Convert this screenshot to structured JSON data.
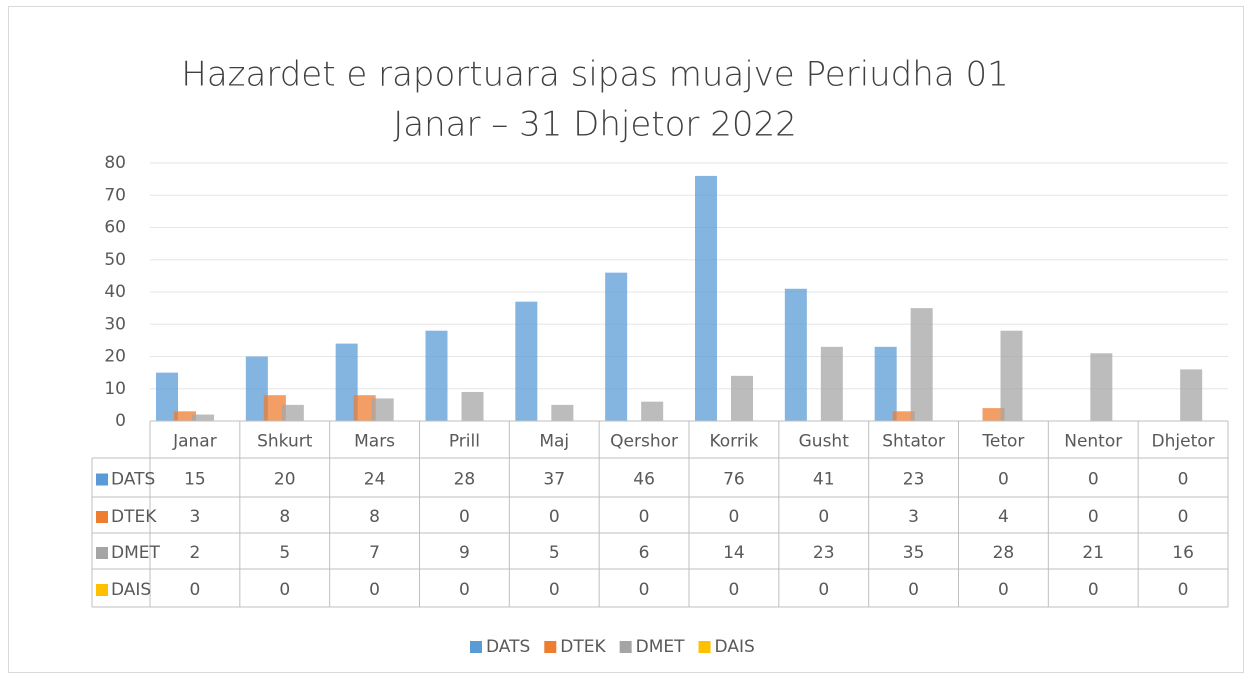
{
  "chart_data": {
    "type": "bar",
    "title": [
      "Hazardet e raportuara sipas muajve Periudha 01",
      "Janar – 31 Dhjetor 2022"
    ],
    "categories": [
      "Janar",
      "Shkurt",
      "Mars",
      "Prill",
      "Maj",
      "Qershor",
      "Korrik",
      "Gusht",
      "Shtator",
      "Tetor",
      "Nentor",
      "Dhjetor"
    ],
    "series": [
      {
        "name": "DATS",
        "color": "#5b9bd5",
        "values": [
          15,
          20,
          24,
          28,
          37,
          46,
          76,
          41,
          23,
          0,
          0,
          0
        ]
      },
      {
        "name": "DTEK",
        "color": "#ed7d31",
        "values": [
          3,
          8,
          8,
          0,
          0,
          0,
          0,
          0,
          3,
          4,
          0,
          0
        ]
      },
      {
        "name": "DMET",
        "color": "#a5a5a5",
        "values": [
          2,
          5,
          7,
          9,
          5,
          6,
          14,
          23,
          35,
          28,
          21,
          16
        ]
      },
      {
        "name": "DAIS",
        "color": "#ffc000",
        "values": [
          0,
          0,
          0,
          0,
          0,
          0,
          0,
          0,
          0,
          0,
          0,
          0
        ]
      }
    ],
    "ylim": [
      0,
      80
    ],
    "yticks": [
      0,
      10,
      20,
      30,
      40,
      50,
      60,
      70,
      80
    ],
    "grid": true,
    "legend": "bottom"
  }
}
